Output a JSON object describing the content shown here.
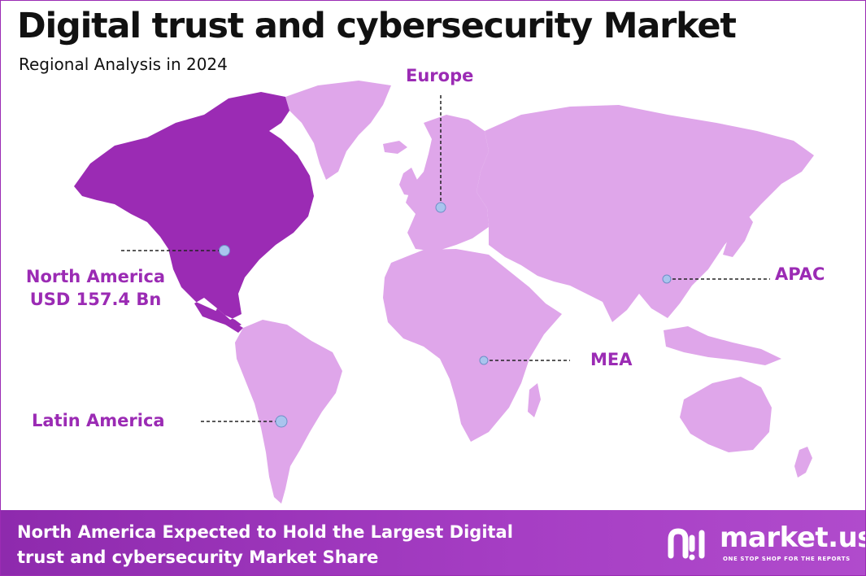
{
  "header": {
    "title": "Digital trust and cybersecurity Market",
    "subtitle": "Regional Analysis in 2024"
  },
  "regions": {
    "europe": "Europe",
    "north_america": "North America",
    "north_america_value": "USD 157.4 Bn",
    "apac": "APAC",
    "mea": "MEA",
    "latin_america": "Latin America"
  },
  "highlighted_region": "North America",
  "colors": {
    "highlight": "#9b2bb4",
    "land": "#dfa6ea",
    "marker": "#a9c4ee",
    "label": "#9b2bb4",
    "footer": "#9b2bb4"
  },
  "footer": {
    "line1": "North America Expected to Hold the Largest Digital",
    "line2": "trust and cybersecurity Market Share"
  },
  "brand": {
    "name": "market.us",
    "tagline": "ONE STOP SHOP FOR THE REPORTS",
    "icon": "market-us-logo-icon"
  }
}
